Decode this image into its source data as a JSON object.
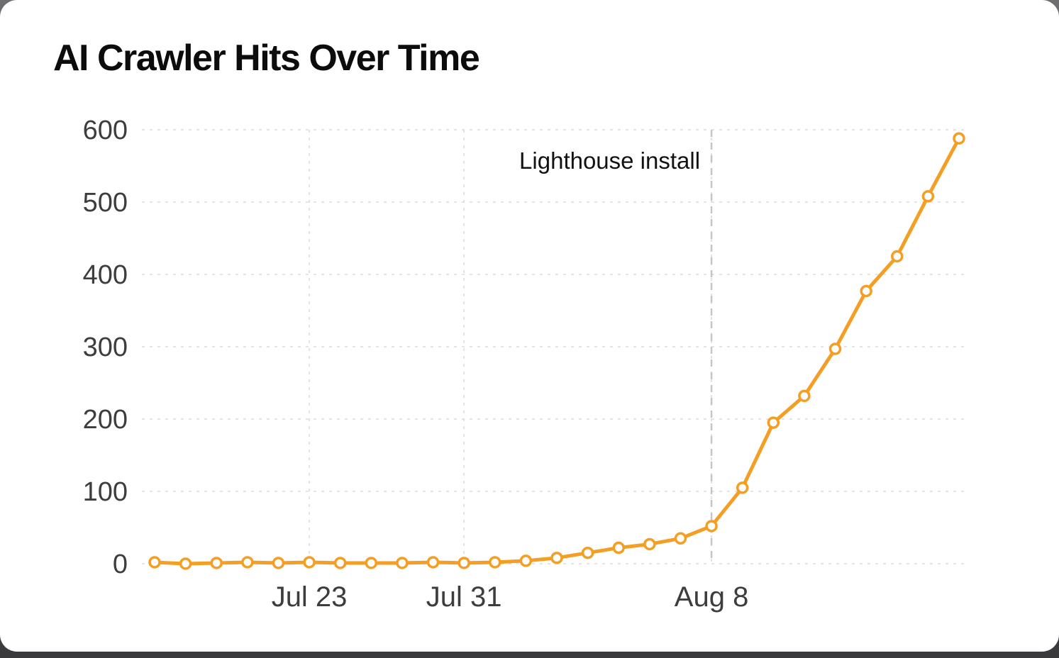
{
  "chart_data": {
    "type": "line",
    "title": "AI Crawler Hits Over Time",
    "xlabel": "",
    "ylabel": "",
    "series": [
      {
        "name": "AI crawler hits",
        "values": [
          2,
          0,
          1,
          2,
          1,
          2,
          1,
          1,
          1,
          2,
          1,
          2,
          4,
          8,
          15,
          22,
          27,
          35,
          52,
          105,
          195,
          232,
          297,
          377,
          425,
          508,
          588
        ]
      }
    ],
    "x_ticks": [
      {
        "label": "Jul 23",
        "point_index": 5
      },
      {
        "label": "Jul 31",
        "point_index": 10
      },
      {
        "label": "Aug 8",
        "point_index": 18
      }
    ],
    "y_ticks": [
      "0",
      "100",
      "200",
      "300",
      "400",
      "500",
      "600"
    ],
    "ylim": [
      0,
      600
    ],
    "grid": true,
    "legend_position": "none",
    "annotation": {
      "label": "Lighthouse install",
      "point_index": 18
    },
    "colors": {
      "line": "#F59E24",
      "marker_fill": "#FFFFFF",
      "grid": "#DCDCDC",
      "annotation_line": "#C6C6C6",
      "tick_text": "#3D3D3D",
      "annotation_text": "#121212"
    }
  }
}
